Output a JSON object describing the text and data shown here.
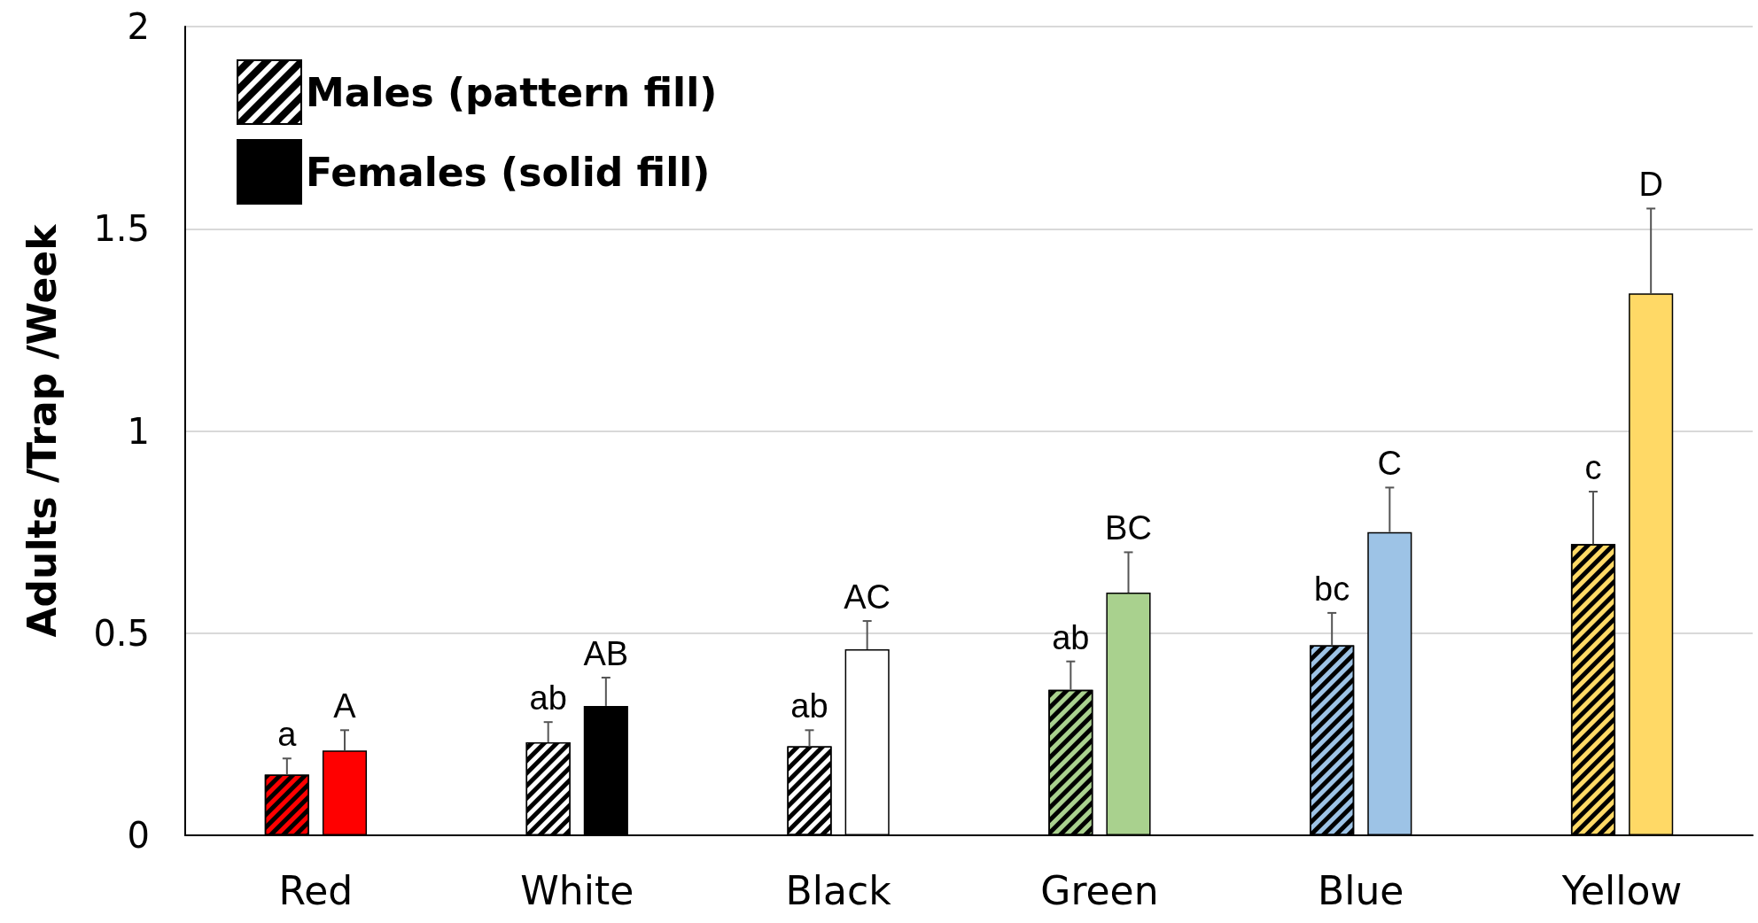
{
  "chart_data": {
    "type": "bar",
    "ylabel": "Adults /Trap /Week",
    "categories": [
      "Red",
      "White",
      "Black",
      "Green",
      "Blue",
      "Yellow"
    ],
    "series": [
      {
        "name": "Males (pattern fill)",
        "color": "#000000",
        "colors": [
          "#ff0000",
          "#000000",
          "#ffffff",
          "#a9d18e",
          "#9dc3e6",
          "#ffd966"
        ],
        "values": [
          0.15,
          0.23,
          0.22,
          0.36,
          0.47,
          0.72
        ],
        "errors": [
          0.04,
          0.05,
          0.04,
          0.07,
          0.08,
          0.13
        ]
      },
      {
        "name": "Females (solid fill)",
        "color": "#000000",
        "colors": [
          "#ff0000",
          "#000000",
          "#ffffff",
          "#a9d18e",
          "#9dc3e6",
          "#ffd966"
        ],
        "values": [
          0.21,
          0.32,
          0.46,
          0.6,
          0.75,
          1.34
        ],
        "errors": [
          0.05,
          0.07,
          0.07,
          0.1,
          0.11,
          0.21
        ]
      }
    ],
    "ylim": [
      0,
      2
    ],
    "yticks": [
      0,
      0.5,
      1,
      1.5,
      2
    ],
    "grid": "y",
    "legend": "top left",
    "annotations": [
      "a",
      "A",
      "ab",
      "AB",
      "ab",
      "AC",
      "ab",
      "BC",
      "bc",
      "C",
      "c",
      "D"
    ]
  }
}
